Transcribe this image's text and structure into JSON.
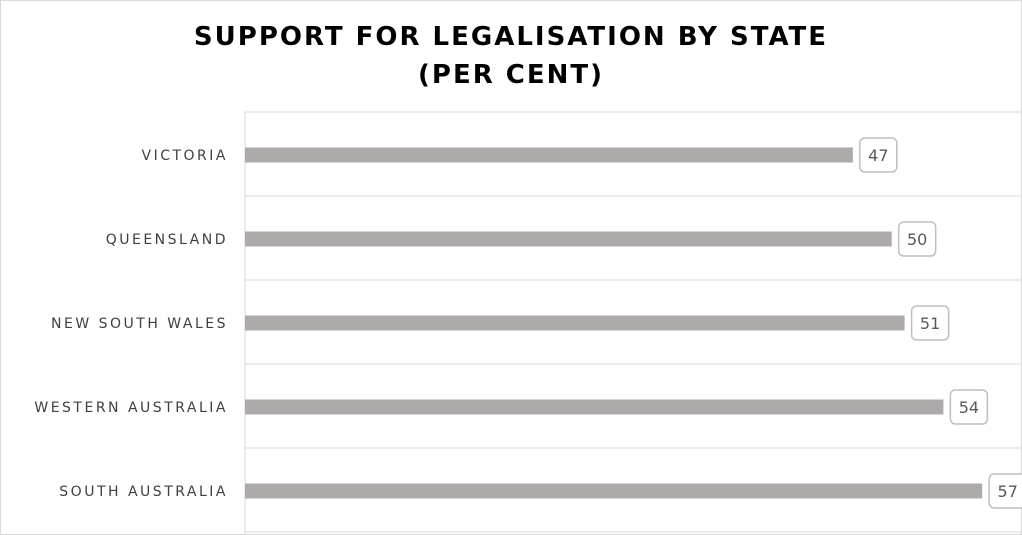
{
  "chart_data": {
    "type": "bar",
    "orientation": "horizontal",
    "title": "SUPPORT FOR LEGALISATION BY STATE",
    "subtitle": "(PER CENT)",
    "categories": [
      "VICTORIA",
      "QUEENSLAND",
      "NEW SOUTH WALES",
      "WESTERN AUSTRALIA",
      "SOUTH AUSTRALIA"
    ],
    "values": [
      47,
      50,
      51,
      54,
      57
    ],
    "xlim": [
      0,
      60
    ],
    "grid": true,
    "legend": "none",
    "bar_color": "#aeaaaa",
    "data_labels": true
  }
}
